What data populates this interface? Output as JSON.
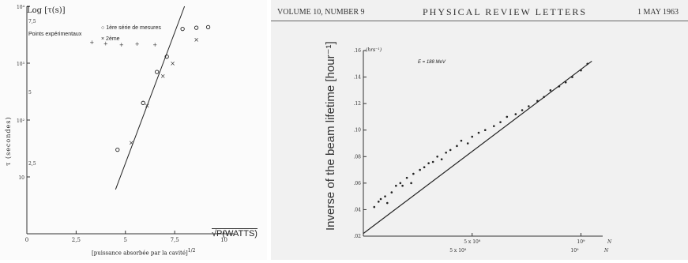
{
  "left_chart": {
    "y_axis_top_label": "Log [τ(s)]",
    "y_axis_label": "τ (secondes)",
    "x_axis_label": "√P(WATTS)",
    "x_axis_caption": "[puissance absorbée par la cavité]",
    "x_axis_caption_exponent": "1/2",
    "legend_title": "Points expérimentaux",
    "legend_series_1": "1ère série de mesures",
    "legend_series_2": "2ème",
    "tick_labels_y_left": [
      "10⁴",
      "10³",
      "10²",
      "10"
    ],
    "tick_labels_y_inner": [
      "7,5",
      "5",
      "2,5"
    ],
    "tick_labels_x": [
      "0",
      "2,5",
      "5",
      "7,5",
      "10"
    ]
  },
  "right_chart": {
    "header_left": "VOLUME 10, NUMBER 9",
    "header_center": "PHYSICAL REVIEW LETTERS",
    "header_right": "1 MAY 1963",
    "y_axis_label": "Inverse of the beam lifetime [hour⁻¹]",
    "y_axis_unit": "(hrs⁻¹)",
    "annotation": "E = 188 MeV",
    "tick_labels_y": [
      ".02",
      ".04",
      ".06",
      ".08",
      ".10",
      ".12",
      ".14",
      ".16"
    ],
    "tick_labels_x_upper": [
      "5 x 10⁸",
      "10⁹"
    ],
    "tick_labels_x_lower": [
      "5 x 10⁸",
      "10⁹"
    ],
    "x_axis_symbol": "N"
  },
  "chart_data": [
    {
      "type": "scatter",
      "title": "",
      "xlabel": "√P (WATTS)",
      "ylabel": "τ (secondes)",
      "y_scale": "log",
      "xlim": [
        0,
        10.5
      ],
      "ylim": [
        1,
        10000
      ],
      "grid": false,
      "legend_placement": "top-left",
      "series": [
        {
          "name": "1ère série de mesures",
          "marker": "open-circle",
          "x": [
            4.6,
            5.9,
            6.6,
            7.1,
            7.9,
            8.6,
            9.2
          ],
          "y": [
            30,
            200,
            700,
            1300,
            4000,
            4200,
            4300
          ]
        },
        {
          "name": "2ème",
          "marker": "cross",
          "x": [
            5.3,
            6.1,
            6.9,
            7.4,
            8.6
          ],
          "y": [
            40,
            180,
            600,
            1000,
            2600
          ]
        }
      ],
      "fit_line": {
        "x": [
          4.5,
          8.0
        ],
        "y": [
          6,
          10000
        ]
      },
      "top_plateau_markers": [
        {
          "x": 3.3,
          "y": 2300
        },
        {
          "x": 4.0,
          "y": 2200
        },
        {
          "x": 4.8,
          "y": 2100
        },
        {
          "x": 5.6,
          "y": 2150
        },
        {
          "x": 6.5,
          "y": 2100
        }
      ]
    },
    {
      "type": "scatter",
      "title": "",
      "annotation": "E = 188 MeV",
      "xlabel": "N",
      "ylabel": "Inverse of the beam lifetime [hour⁻¹]",
      "xlim": [
        0,
        1.1
      ],
      "ylim": [
        0.02,
        0.16
      ],
      "grid": false,
      "series": [
        {
          "name": "",
          "x": [
            0.05,
            0.07,
            0.08,
            0.1,
            0.11,
            0.13,
            0.15,
            0.17,
            0.18,
            0.2,
            0.22,
            0.23,
            0.26,
            0.28,
            0.3,
            0.32,
            0.34,
            0.36,
            0.38,
            0.4,
            0.43,
            0.45,
            0.48,
            0.5,
            0.53,
            0.56,
            0.6,
            0.63,
            0.66,
            0.7,
            0.73,
            0.76,
            0.8,
            0.83,
            0.86,
            0.9,
            0.93,
            0.96,
            1.0,
            1.03
          ],
          "y": [
            0.042,
            0.046,
            0.048,
            0.05,
            0.045,
            0.053,
            0.058,
            0.06,
            0.058,
            0.064,
            0.06,
            0.067,
            0.07,
            0.072,
            0.075,
            0.076,
            0.08,
            0.078,
            0.083,
            0.085,
            0.088,
            0.092,
            0.09,
            0.095,
            0.098,
            0.1,
            0.103,
            0.106,
            0.11,
            0.112,
            0.115,
            0.118,
            0.122,
            0.125,
            0.13,
            0.133,
            0.136,
            0.14,
            0.145,
            0.15
          ]
        }
      ],
      "fit_line": {
        "x": [
          0,
          1.05
        ],
        "y": [
          0.022,
          0.152
        ]
      }
    }
  ]
}
